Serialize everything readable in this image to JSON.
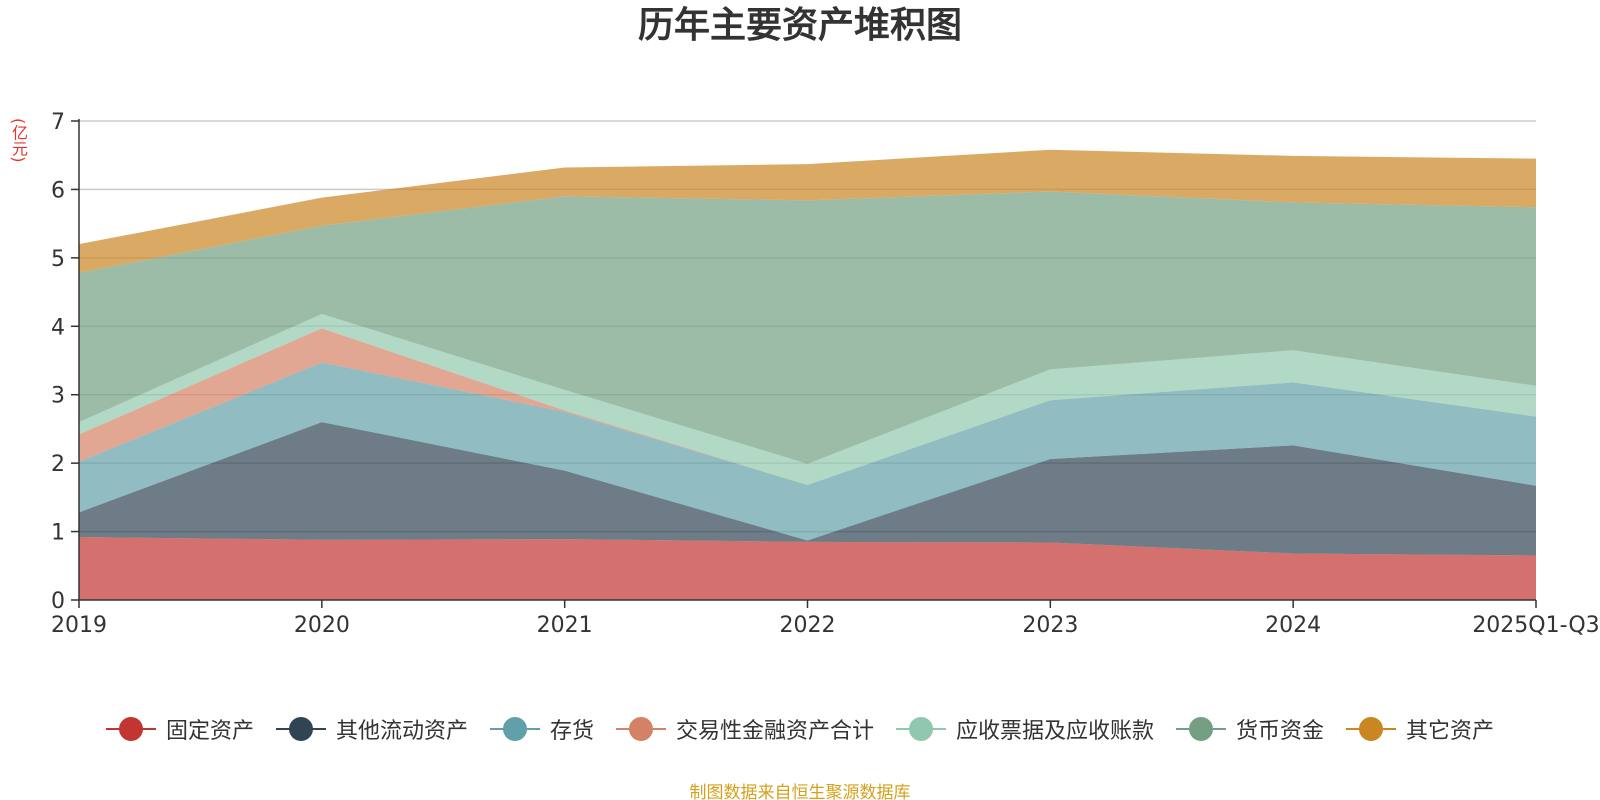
{
  "chart_data": {
    "type": "area",
    "stacked": true,
    "title": "历年主要资产堆积图",
    "unit": "(亿元)",
    "categories": [
      "2019",
      "2020",
      "2021",
      "2022",
      "2023",
      "2024",
      "2025Q1-Q3"
    ],
    "ylim": [
      0,
      7
    ],
    "yticks": [
      0,
      1,
      2,
      3,
      4,
      5,
      6,
      7
    ],
    "grid": true,
    "legend_position": "bottom",
    "series": [
      {
        "name": "固定资产",
        "color": "#c23531",
        "values": [
          0.92,
          0.88,
          0.89,
          0.85,
          0.84,
          0.68,
          0.65
        ]
      },
      {
        "name": "其他流动资产",
        "color": "#2f4554",
        "values": [
          0.36,
          1.72,
          1.0,
          0.02,
          1.22,
          1.58,
          1.02
        ]
      },
      {
        "name": "存货",
        "color": "#61a0a8",
        "values": [
          0.74,
          0.87,
          0.86,
          0.81,
          0.86,
          0.92,
          1.01
        ]
      },
      {
        "name": "交易性金融资产合计",
        "color": "#d48265",
        "values": [
          0.4,
          0.5,
          0.02,
          0.0,
          0.0,
          0.0,
          0.0
        ]
      },
      {
        "name": "应收票据及应收账款",
        "color": "#91c7ae",
        "values": [
          0.18,
          0.21,
          0.3,
          0.31,
          0.45,
          0.47,
          0.45
        ]
      },
      {
        "name": "货币资金",
        "color": "#749f83",
        "values": [
          2.18,
          1.29,
          2.83,
          3.85,
          2.6,
          2.16,
          2.61
        ]
      },
      {
        "name": "其它资产",
        "color": "#ca8622",
        "values": [
          0.42,
          0.41,
          0.42,
          0.53,
          0.61,
          0.68,
          0.71
        ]
      }
    ]
  },
  "source_note": "制图数据来自恒生聚源数据库"
}
